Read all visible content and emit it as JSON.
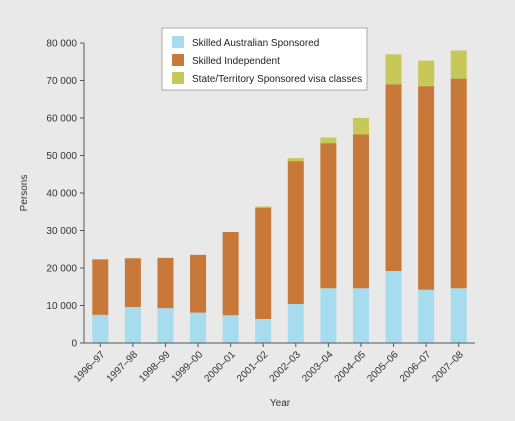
{
  "chart_data": {
    "type": "bar",
    "stacked": true,
    "categories": [
      "1996–97",
      "1997–98",
      "1998–99",
      "1999–00",
      "2000–01",
      "2001–02",
      "2002–03",
      "2003–04",
      "2004–05",
      "2005–06",
      "2006–07",
      "2007–08"
    ],
    "series": [
      {
        "name": "Skilled Australian Sponsored",
        "color": "#a6dcee",
        "values": [
          7500,
          9600,
          9300,
          8100,
          7400,
          6400,
          10400,
          14600,
          14600,
          19200,
          14200,
          14600
        ]
      },
      {
        "name": "Skilled Independent",
        "color": "#c8793a",
        "values": [
          14800,
          13000,
          13400,
          15400,
          22200,
          29700,
          38100,
          38700,
          41000,
          49800,
          54300,
          55900
        ]
      },
      {
        "name": "State/Territory Sponsored visa classes",
        "color": "#c7c85a",
        "values": [
          0,
          0,
          0,
          0,
          0,
          300,
          800,
          1500,
          4400,
          8000,
          6800,
          7500
        ]
      }
    ],
    "ylim": [
      0,
      80000
    ],
    "yticks": [
      0,
      10000,
      20000,
      30000,
      40000,
      50000,
      60000,
      70000,
      80000
    ],
    "ytick_labels": [
      "0",
      "10 000",
      "20 000",
      "30 000",
      "40 000",
      "50 000",
      "60 000",
      "70 000",
      "80 000"
    ],
    "xlabel": "Year",
    "ylabel": "Persons",
    "legend_position": "top-right",
    "grid": false
  }
}
